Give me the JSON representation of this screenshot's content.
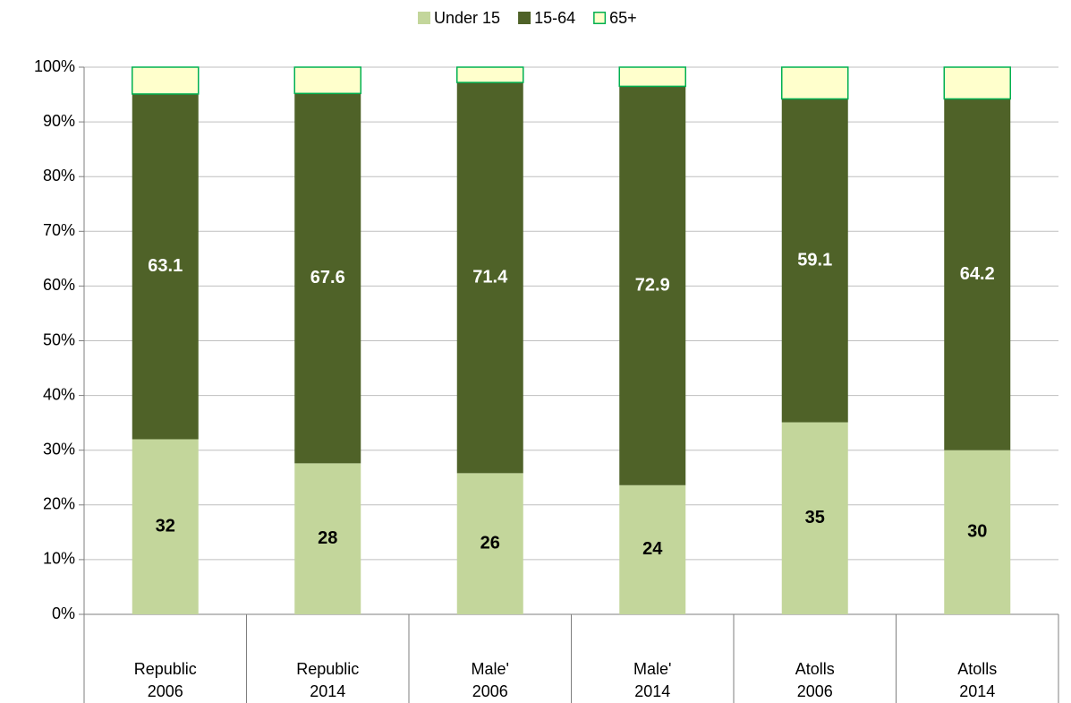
{
  "chart_data": {
    "type": "stacked_bar",
    "categories": [
      "Republic",
      "Republic",
      "Male'",
      "Male'",
      "Atolls",
      "Atolls"
    ],
    "years": [
      "2006",
      "2014",
      "2006",
      "2014",
      "2006",
      "2014"
    ],
    "series": [
      {
        "name": "Under 15",
        "color": "#c3d69b",
        "label_color": "#000000",
        "values": [
          32,
          27.6,
          25.8,
          23.6,
          35.1,
          30
        ],
        "value_labels": [
          "32",
          "28",
          "26",
          "24",
          "35",
          "30"
        ]
      },
      {
        "name": "15-64",
        "color": "#4f6228",
        "label_color": "#ffffff",
        "values": [
          63.1,
          67.6,
          71.4,
          72.9,
          59.1,
          64.2
        ]
      },
      {
        "name": "65+",
        "color": "#ffffcc",
        "stroke": "#00b050",
        "values": [
          4.9,
          4.8,
          2.8,
          3.5,
          5.8,
          5.8
        ]
      }
    ],
    "ylim": [
      0,
      100
    ],
    "yticks": [
      {
        "value": 0,
        "label": "0%"
      },
      {
        "value": 10,
        "label": "10%"
      },
      {
        "value": 20,
        "label": "20%"
      },
      {
        "value": 30,
        "label": "30%"
      },
      {
        "value": 40,
        "label": "40%"
      },
      {
        "value": 50,
        "label": "50%"
      },
      {
        "value": 60,
        "label": "60%"
      },
      {
        "value": 70,
        "label": "70%"
      },
      {
        "value": 80,
        "label": "80%"
      },
      {
        "value": 90,
        "label": "90%"
      },
      {
        "value": 100,
        "label": "100%"
      }
    ],
    "grid": true,
    "legend": "top"
  }
}
